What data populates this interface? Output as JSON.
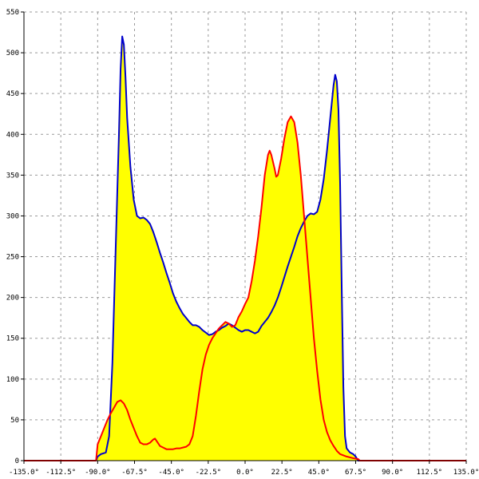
{
  "chart_data": {
    "type": "area",
    "title": "",
    "xlabel": "",
    "ylabel": "",
    "xlim": [
      -135,
      135
    ],
    "ylim": [
      0,
      550
    ],
    "grid": true,
    "x_ticks": [
      -135,
      -112.5,
      -90,
      -67.5,
      -45,
      -22.5,
      0,
      22.5,
      45,
      67.5,
      90,
      112.5,
      135
    ],
    "x_tick_labels": [
      "-135.0°",
      "-112.5°",
      "-90.0°",
      "-67.5°",
      "-45.0°",
      "-22.5°",
      "0.0°",
      "22.5°",
      "45.0°",
      "67.5°",
      "90.0°",
      "112.5°",
      "135.0°"
    ],
    "y_ticks": [
      0,
      50,
      100,
      150,
      200,
      250,
      300,
      350,
      400,
      450,
      500,
      550
    ],
    "y_tick_labels": [
      "0",
      "50",
      "100",
      "150",
      "200",
      "250",
      "300",
      "350",
      "400",
      "450",
      "500",
      "550"
    ],
    "fill_color": "#ffff00",
    "series": [
      {
        "color": "#0000cc",
        "points": [
          [
            -135,
            0
          ],
          [
            -91,
            0
          ],
          [
            -90,
            5
          ],
          [
            -88,
            8
          ],
          [
            -85,
            10
          ],
          [
            -83,
            30
          ],
          [
            -81,
            120
          ],
          [
            -79,
            260
          ],
          [
            -77,
            400
          ],
          [
            -76,
            480
          ],
          [
            -75,
            520
          ],
          [
            -74,
            510
          ],
          [
            -73,
            470
          ],
          [
            -72,
            420
          ],
          [
            -70,
            360
          ],
          [
            -68,
            320
          ],
          [
            -66,
            300
          ],
          [
            -64,
            297
          ],
          [
            -62,
            298
          ],
          [
            -60,
            295
          ],
          [
            -58,
            290
          ],
          [
            -56,
            280
          ],
          [
            -54,
            268
          ],
          [
            -52,
            255
          ],
          [
            -50,
            243
          ],
          [
            -48,
            230
          ],
          [
            -46,
            218
          ],
          [
            -44,
            205
          ],
          [
            -42,
            195
          ],
          [
            -40,
            187
          ],
          [
            -38,
            180
          ],
          [
            -36,
            175
          ],
          [
            -34,
            170
          ],
          [
            -32,
            166
          ],
          [
            -30,
            166
          ],
          [
            -28,
            164
          ],
          [
            -26,
            160
          ],
          [
            -24,
            157
          ],
          [
            -22,
            154
          ],
          [
            -20,
            155
          ],
          [
            -18,
            158
          ],
          [
            -16,
            160
          ],
          [
            -14,
            163
          ],
          [
            -12,
            165
          ],
          [
            -10,
            168
          ],
          [
            -8,
            166
          ],
          [
            -6,
            163
          ],
          [
            -4,
            160
          ],
          [
            -2,
            158
          ],
          [
            0,
            160
          ],
          [
            2,
            160
          ],
          [
            4,
            158
          ],
          [
            6,
            156
          ],
          [
            8,
            158
          ],
          [
            10,
            165
          ],
          [
            12,
            170
          ],
          [
            14,
            175
          ],
          [
            16,
            182
          ],
          [
            18,
            190
          ],
          [
            20,
            200
          ],
          [
            22,
            212
          ],
          [
            24,
            225
          ],
          [
            26,
            238
          ],
          [
            28,
            250
          ],
          [
            30,
            262
          ],
          [
            32,
            275
          ],
          [
            34,
            285
          ],
          [
            36,
            293
          ],
          [
            38,
            300
          ],
          [
            40,
            303
          ],
          [
            42,
            302
          ],
          [
            44,
            305
          ],
          [
            46,
            320
          ],
          [
            48,
            345
          ],
          [
            50,
            380
          ],
          [
            52,
            420
          ],
          [
            54,
            460
          ],
          [
            55,
            473
          ],
          [
            56,
            465
          ],
          [
            57,
            430
          ],
          [
            58,
            340
          ],
          [
            59,
            210
          ],
          [
            60,
            90
          ],
          [
            61,
            30
          ],
          [
            62,
            15
          ],
          [
            64,
            10
          ],
          [
            66,
            8
          ],
          [
            67.5,
            5
          ],
          [
            69,
            0
          ],
          [
            135,
            0
          ]
        ]
      },
      {
        "color": "#ff0000",
        "points": [
          [
            -135,
            0
          ],
          [
            -91,
            0
          ],
          [
            -90,
            20
          ],
          [
            -88,
            30
          ],
          [
            -86,
            40
          ],
          [
            -84,
            50
          ],
          [
            -82,
            58
          ],
          [
            -80,
            65
          ],
          [
            -78,
            72
          ],
          [
            -76,
            74
          ],
          [
            -74,
            70
          ],
          [
            -72,
            62
          ],
          [
            -70,
            50
          ],
          [
            -68,
            40
          ],
          [
            -66,
            30
          ],
          [
            -64,
            22
          ],
          [
            -62,
            20
          ],
          [
            -60,
            20
          ],
          [
            -58,
            22
          ],
          [
            -56,
            26
          ],
          [
            -55,
            27
          ],
          [
            -54,
            24
          ],
          [
            -52,
            18
          ],
          [
            -50,
            16
          ],
          [
            -48,
            14
          ],
          [
            -46,
            14
          ],
          [
            -44,
            14
          ],
          [
            -42,
            15
          ],
          [
            -40,
            15
          ],
          [
            -38,
            16
          ],
          [
            -36,
            17
          ],
          [
            -34,
            20
          ],
          [
            -32,
            30
          ],
          [
            -30,
            55
          ],
          [
            -28,
            85
          ],
          [
            -26,
            112
          ],
          [
            -24,
            130
          ],
          [
            -22,
            142
          ],
          [
            -20,
            150
          ],
          [
            -18,
            156
          ],
          [
            -16,
            162
          ],
          [
            -14,
            166
          ],
          [
            -12,
            170
          ],
          [
            -10,
            168
          ],
          [
            -8,
            164
          ],
          [
            -6,
            166
          ],
          [
            -4,
            176
          ],
          [
            -2,
            183
          ],
          [
            0,
            192
          ],
          [
            2,
            200
          ],
          [
            4,
            220
          ],
          [
            6,
            245
          ],
          [
            8,
            275
          ],
          [
            10,
            310
          ],
          [
            12,
            350
          ],
          [
            14,
            375
          ],
          [
            15,
            380
          ],
          [
            16,
            375
          ],
          [
            18,
            358
          ],
          [
            19,
            348
          ],
          [
            20,
            350
          ],
          [
            22,
            370
          ],
          [
            24,
            395
          ],
          [
            26,
            415
          ],
          [
            28,
            422
          ],
          [
            30,
            415
          ],
          [
            32,
            390
          ],
          [
            34,
            350
          ],
          [
            36,
            300
          ],
          [
            38,
            250
          ],
          [
            40,
            200
          ],
          [
            42,
            150
          ],
          [
            44,
            110
          ],
          [
            46,
            75
          ],
          [
            48,
            50
          ],
          [
            50,
            35
          ],
          [
            52,
            25
          ],
          [
            54,
            18
          ],
          [
            56,
            12
          ],
          [
            58,
            8
          ],
          [
            62,
            5
          ],
          [
            66,
            3
          ],
          [
            69,
            2
          ],
          [
            70,
            0
          ],
          [
            135,
            0
          ]
        ]
      }
    ]
  }
}
